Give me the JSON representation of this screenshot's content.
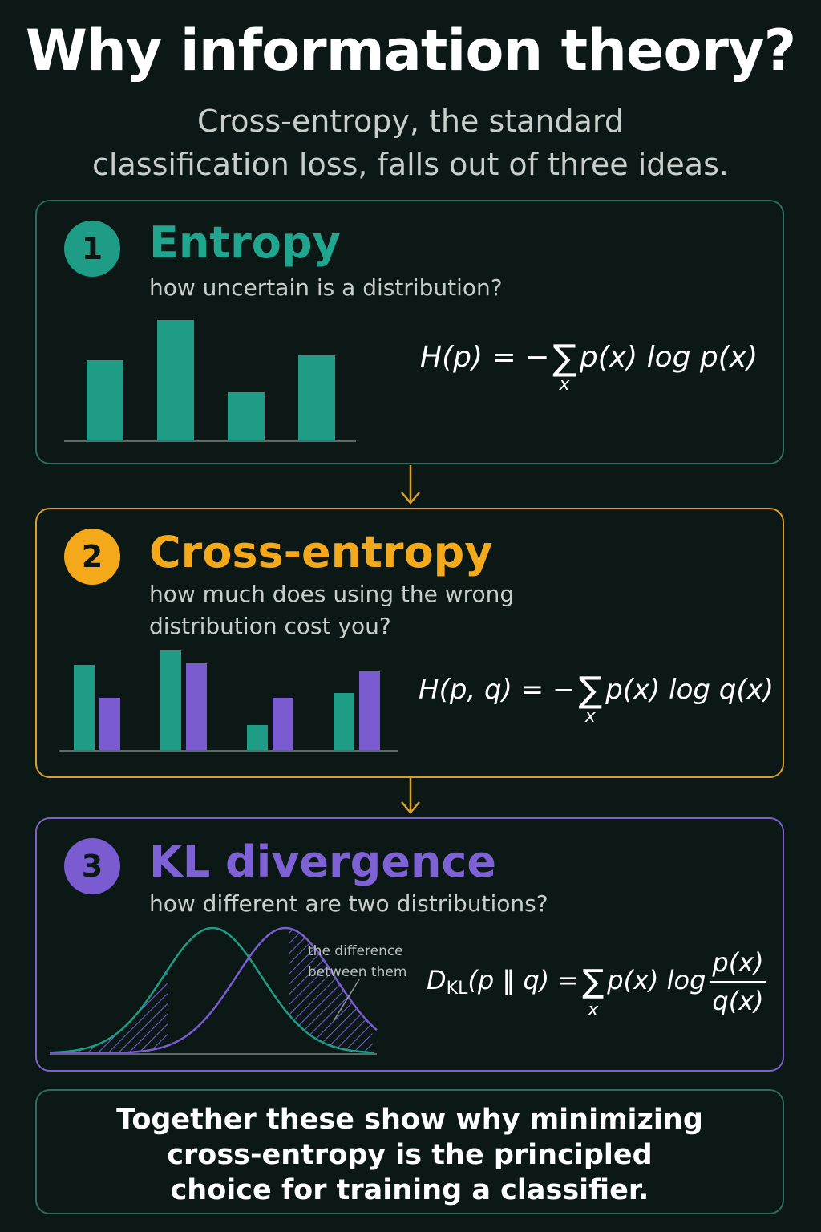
{
  "title": "Why information theory?",
  "subtitle": {
    "line1": "Cross-entropy, the standard",
    "line2": "classification loss, falls out of three ideas."
  },
  "sections": [
    {
      "number": "1",
      "title": "Entropy",
      "subtitle_lines": [
        "how uncertain is a distribution?"
      ],
      "formula": {
        "lhs": "H(p) = −",
        "sum_sub": "x",
        "rhs": "p(x) log p(x)"
      }
    },
    {
      "number": "2",
      "title": "Cross-entropy",
      "subtitle_lines": [
        "how much does using the wrong",
        "distribution cost you?"
      ],
      "formula": {
        "lhs": "H(p, q) = −",
        "sum_sub": "x",
        "rhs": "p(x) log q(x)"
      }
    },
    {
      "number": "3",
      "title": "KL divergence",
      "subtitle_lines": [
        "how different are two distributions?"
      ],
      "formula": {
        "lhs_main": "D",
        "lhs_sub": "KL",
        "lhs_rest": "(p ‖ q) =",
        "sum_sub": "x",
        "mid": "p(x) log",
        "num": "p(x)",
        "den": "q(x)"
      },
      "annotation": [
        "the difference",
        "between them"
      ]
    }
  ],
  "footer": {
    "lines": [
      "Together these show why minimizing",
      "cross-entropy is the principled",
      "choice for training a classifier."
    ]
  },
  "colors": {
    "background": "#0b1816",
    "teal": "#1f9c86",
    "amber": "#f3a91a",
    "purple": "#7a5cd0"
  },
  "chart_data": [
    {
      "type": "bar",
      "values": [
        100,
        150,
        60,
        106
      ],
      "color": "#1f9c86"
    },
    {
      "type": "bar",
      "series": [
        {
          "color": "#1f9c86",
          "values": [
            106,
            124,
            31,
            71
          ]
        },
        {
          "color": "#7a5cd0",
          "values": [
            65,
            108,
            65,
            98
          ]
        }
      ]
    },
    {
      "type": "line",
      "series": [
        {
          "color": "#1f9c86",
          "mean": 205,
          "sd": 62
        },
        {
          "color": "#7a5cd0",
          "mean": 296,
          "sd": 62
        }
      ],
      "shaded_regions": [
        "left-tail",
        "right-tail"
      ]
    }
  ]
}
